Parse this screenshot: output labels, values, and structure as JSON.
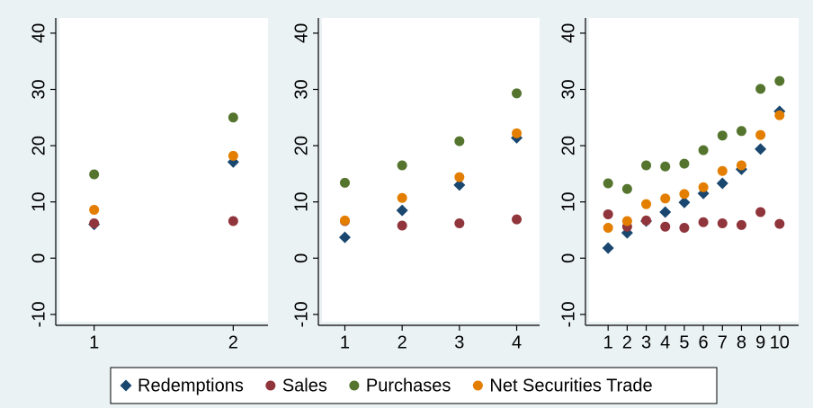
{
  "chart_data": [
    {
      "type": "scatter",
      "x": [
        1,
        2
      ],
      "xlim": [
        0.75,
        2.25
      ],
      "xticks": [
        1,
        2
      ],
      "ylim": [
        -11.3,
        42.7
      ],
      "yticks": [
        -10,
        0,
        10,
        20,
        30,
        40
      ],
      "series": [
        {
          "name": "Redemptions",
          "color": "#1a476f",
          "marker": "diamond",
          "values": [
            6.0,
            17.1
          ]
        },
        {
          "name": "Sales",
          "color": "#90353b",
          "marker": "circle",
          "values": [
            6.2,
            6.6
          ]
        },
        {
          "name": "Purchases",
          "color": "#55752f",
          "marker": "circle",
          "values": [
            14.9,
            25.0
          ]
        },
        {
          "name": "Net Securities Trade",
          "color": "#e37e00",
          "marker": "circle",
          "values": [
            8.6,
            18.2
          ]
        }
      ]
    },
    {
      "type": "scatter",
      "x": [
        1,
        2,
        3,
        4
      ],
      "xlim": [
        0.6,
        4.4
      ],
      "xticks": [
        1,
        2,
        3,
        4
      ],
      "ylim": [
        -11.3,
        42.7
      ],
      "yticks": [
        -10,
        0,
        10,
        20,
        30,
        40
      ],
      "series": [
        {
          "name": "Redemptions",
          "color": "#1a476f",
          "marker": "diamond",
          "values": [
            3.7,
            8.5,
            13.0,
            21.4
          ]
        },
        {
          "name": "Sales",
          "color": "#90353b",
          "marker": "circle",
          "values": [
            6.6,
            5.8,
            6.2,
            6.9
          ]
        },
        {
          "name": "Purchases",
          "color": "#55752f",
          "marker": "circle",
          "values": [
            13.4,
            16.5,
            20.8,
            29.3
          ]
        },
        {
          "name": "Net Securities Trade",
          "color": "#e37e00",
          "marker": "circle",
          "values": [
            6.7,
            10.7,
            14.4,
            22.2
          ]
        }
      ]
    },
    {
      "type": "scatter",
      "x": [
        1,
        2,
        3,
        4,
        5,
        6,
        7,
        8,
        9,
        10
      ],
      "xlim": [
        0,
        11
      ],
      "xticks": [
        1,
        2,
        3,
        4,
        5,
        6,
        7,
        8,
        9,
        10
      ],
      "ylim": [
        -11.3,
        42.7
      ],
      "yticks": [
        -10,
        0,
        10,
        20,
        30,
        40
      ],
      "series": [
        {
          "name": "Redemptions",
          "color": "#1a476f",
          "marker": "diamond",
          "values": [
            1.8,
            4.5,
            6.6,
            8.2,
            9.9,
            11.5,
            13.3,
            15.8,
            19.4,
            26.1
          ]
        },
        {
          "name": "Sales",
          "color": "#90353b",
          "marker": "circle",
          "values": [
            7.8,
            5.6,
            6.7,
            5.6,
            5.4,
            6.4,
            6.2,
            5.9,
            8.2,
            6.1
          ]
        },
        {
          "name": "Purchases",
          "color": "#55752f",
          "marker": "circle",
          "values": [
            13.3,
            12.3,
            16.5,
            16.3,
            16.8,
            19.2,
            21.8,
            22.6,
            30.1,
            31.5
          ]
        },
        {
          "name": "Net Securities Trade",
          "color": "#e37e00",
          "marker": "circle",
          "values": [
            5.4,
            6.6,
            9.6,
            10.6,
            11.4,
            12.6,
            15.5,
            16.5,
            21.9,
            25.4
          ]
        }
      ]
    }
  ]
}
